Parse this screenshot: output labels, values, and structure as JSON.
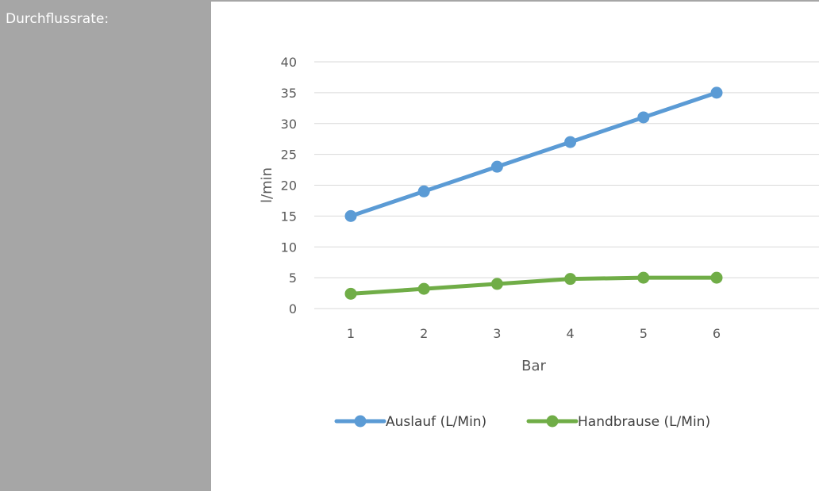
{
  "side_panel": {
    "label": "Durchflussrate:"
  },
  "colors": {
    "panel": "#a6a6a6",
    "series_1": "#5b9bd5",
    "series_2": "#70ad47",
    "grid": "#d9d9d9",
    "text": "#595959"
  },
  "chart_data": {
    "type": "line",
    "title": "",
    "xlabel": "Bar",
    "ylabel": "l/min",
    "categories": [
      "1",
      "2",
      "3",
      "4",
      "5",
      "6"
    ],
    "ylim": [
      0,
      40
    ],
    "yticks": [
      "0",
      "5",
      "10",
      "15",
      "20",
      "25",
      "30",
      "35",
      "40"
    ],
    "grid": true,
    "legend_position": "bottom",
    "series": [
      {
        "name": "Auslauf (L/Min)",
        "values": [
          15,
          19,
          23,
          27,
          31,
          35
        ],
        "color": "#5b9bd5"
      },
      {
        "name": "Handbrause (L/Min)",
        "values": [
          2.4,
          3.2,
          4,
          4.8,
          5,
          5
        ],
        "color": "#70ad47"
      }
    ]
  }
}
